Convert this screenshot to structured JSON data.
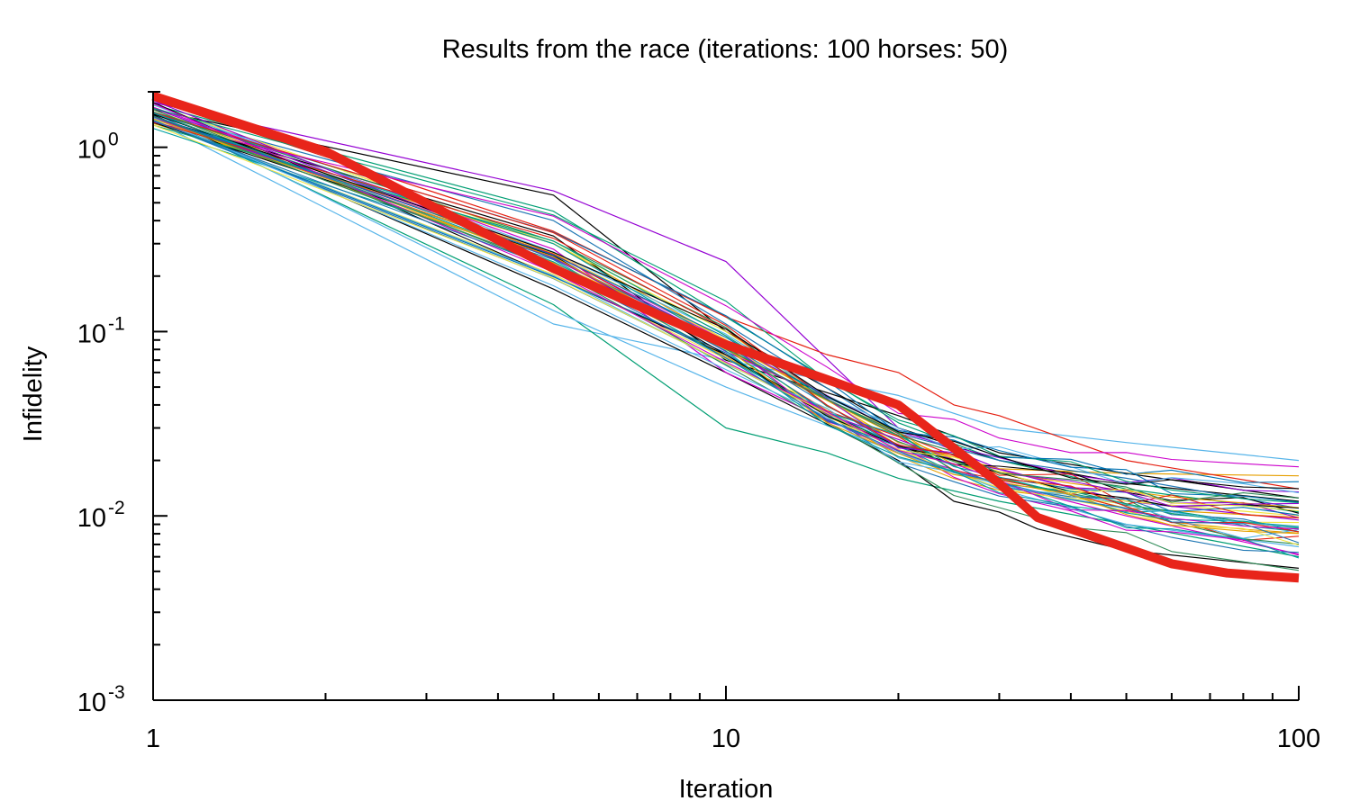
{
  "chart_data": {
    "type": "line",
    "title": "Results from the race (iterations: 100 horses: 50)",
    "xlabel": "Iteration",
    "ylabel": "Infidelity",
    "x_scale": "log",
    "y_scale": "log",
    "xlim": [
      1,
      100
    ],
    "ylim": [
      0.001,
      2
    ],
    "x_ticks": [
      {
        "value": 1,
        "label": "1"
      },
      {
        "value": 10,
        "label": "10"
      },
      {
        "value": 100,
        "label": "100"
      }
    ],
    "y_ticks": [
      {
        "value": 1,
        "base": "10",
        "exp": "0"
      },
      {
        "value": 0.1,
        "base": "10",
        "exp": "-1"
      },
      {
        "value": 0.01,
        "base": "10",
        "exp": "-2"
      },
      {
        "value": 0.001,
        "base": "10",
        "exp": "-3"
      }
    ],
    "grid": false,
    "legend": "none",
    "highlight": {
      "color": "#e8251a",
      "x": [
        1,
        2,
        5,
        10,
        15,
        20,
        30,
        35,
        45,
        60,
        75,
        90,
        100
      ],
      "y": [
        1.9,
        0.95,
        0.22,
        0.085,
        0.055,
        0.04,
        0.015,
        0.0098,
        0.0075,
        0.0055,
        0.0049,
        0.0047,
        0.0046
      ]
    },
    "series_count": 50,
    "palette": [
      "#9400d3",
      "#009e73",
      "#56b4e9",
      "#e69f00",
      "#f0e442",
      "#0072b2",
      "#e51e10",
      "#000000",
      "#cc00cc",
      "#2e8b57",
      "#1f77b4",
      "#00a0a0"
    ],
    "series": [
      {
        "color": "#9400d3",
        "x": [
          1,
          5,
          10,
          20,
          30,
          50,
          100
        ],
        "y": [
          1.75,
          0.58,
          0.24,
          0.03,
          0.018,
          0.012,
          0.0095
        ]
      },
      {
        "color": "#000000",
        "x": [
          1,
          5,
          10,
          20,
          30,
          50,
          100
        ],
        "y": [
          1.6,
          0.55,
          0.1,
          0.03,
          0.02,
          0.015,
          0.012
        ]
      },
      {
        "color": "#009e73",
        "x": [
          1,
          5,
          10,
          20,
          30,
          50,
          100
        ],
        "y": [
          1.7,
          0.45,
          0.12,
          0.032,
          0.02,
          0.014,
          0.0105
        ]
      },
      {
        "color": "#56b4e9",
        "x": [
          1,
          5,
          10,
          20,
          30,
          50,
          100
        ],
        "y": [
          1.4,
          0.11,
          0.07,
          0.045,
          0.03,
          0.025,
          0.02
        ]
      },
      {
        "color": "#e69f00",
        "x": [
          1,
          5,
          10,
          20,
          30,
          50,
          100
        ],
        "y": [
          1.35,
          0.3,
          0.09,
          0.025,
          0.018,
          0.017,
          0.0165
        ]
      },
      {
        "color": "#009e73",
        "x": [
          1,
          5,
          10,
          15,
          20,
          30,
          50,
          100
        ],
        "y": [
          1.5,
          0.14,
          0.03,
          0.022,
          0.016,
          0.012,
          0.009,
          0.006
        ]
      },
      {
        "color": "#e51e10",
        "x": [
          1,
          5,
          10,
          15,
          20,
          25,
          30,
          50,
          100
        ],
        "y": [
          1.8,
          0.35,
          0.12,
          0.075,
          0.06,
          0.04,
          0.035,
          0.02,
          0.014
        ]
      },
      {
        "color": "#000000",
        "x": [
          1,
          5,
          10,
          20,
          25,
          30,
          35,
          50,
          100
        ],
        "y": [
          1.5,
          0.17,
          0.06,
          0.02,
          0.012,
          0.0105,
          0.0085,
          0.0065,
          0.0052
        ]
      },
      {
        "color": "#cc00cc",
        "x": [
          1,
          5,
          10,
          20,
          30,
          50,
          100
        ],
        "y": [
          1.65,
          0.28,
          0.06,
          0.022,
          0.015,
          0.01,
          0.0062
        ]
      },
      {
        "color": "#1f77b4",
        "x": [
          1,
          5,
          10,
          20,
          30,
          50,
          100
        ],
        "y": [
          1.55,
          0.4,
          0.11,
          0.028,
          0.02,
          0.016,
          0.011
        ]
      },
      {
        "color": "#56b4e9",
        "x": [
          1,
          5,
          10,
          20,
          30,
          50,
          100
        ],
        "y": [
          1.55,
          0.13,
          0.05,
          0.022,
          0.014,
          0.009,
          0.0068
        ]
      },
      {
        "color": "#000000",
        "x": [
          1,
          5,
          10,
          20,
          30,
          50,
          100
        ],
        "y": [
          1.45,
          0.33,
          0.07,
          0.035,
          0.022,
          0.017,
          0.0125
        ]
      },
      {
        "color": "#e69f00",
        "x": [
          1,
          5,
          10,
          20,
          30,
          50,
          100
        ],
        "y": [
          1.6,
          0.25,
          0.08,
          0.027,
          0.016,
          0.011,
          0.0098
        ]
      },
      {
        "color": "#f0e442",
        "x": [
          1,
          5,
          10,
          20,
          30,
          50,
          100
        ],
        "y": [
          1.7,
          0.3,
          0.1,
          0.024,
          0.017,
          0.012,
          0.01
        ]
      }
    ]
  }
}
